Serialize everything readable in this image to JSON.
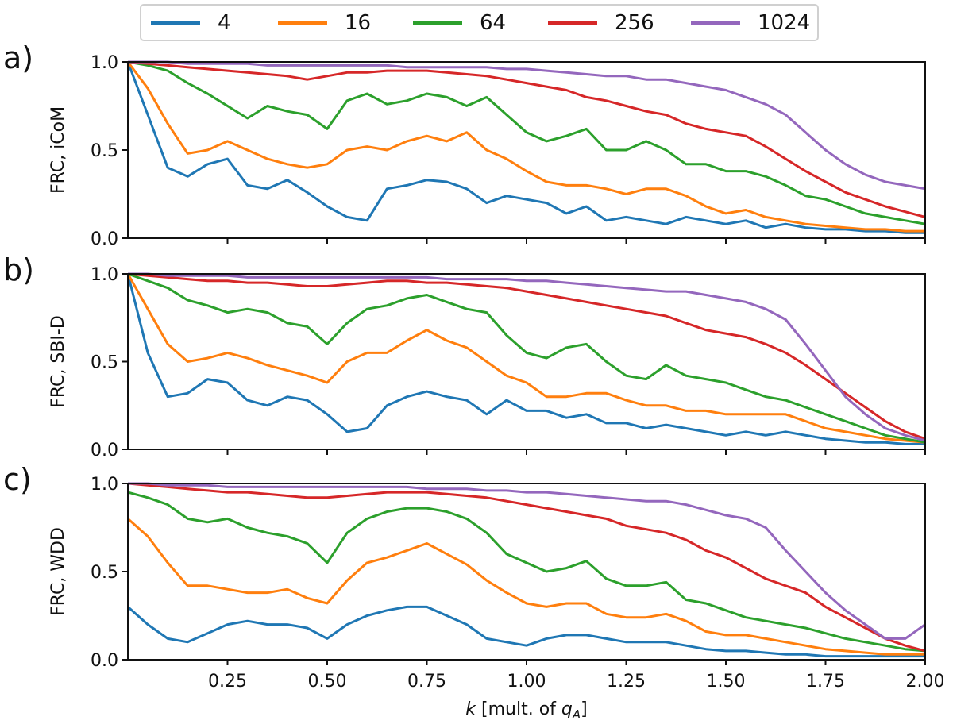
{
  "legend": {
    "items": [
      {
        "label": "4",
        "color": "#1f77b4"
      },
      {
        "label": "16",
        "color": "#ff7f0e"
      },
      {
        "label": "64",
        "color": "#2ca02c"
      },
      {
        "label": "256",
        "color": "#d62728"
      },
      {
        "label": "1024",
        "color": "#9467bd"
      }
    ]
  },
  "xaxis": {
    "label_main": "k",
    "label_rest": " [mult. of ",
    "label_q": "q",
    "label_sub": "A",
    "label_close": "]"
  },
  "chart_data": [
    {
      "type": "line",
      "panel_label": "a)",
      "ylabel": "FRC, iCoM",
      "xlim": [
        0.0,
        2.0
      ],
      "ylim": [
        0.0,
        1.0
      ],
      "xticks": [
        "0.25",
        "0.50",
        "0.75",
        "1.00",
        "1.25",
        "1.50",
        "1.75",
        "2.00"
      ],
      "yticks": [
        "0.0",
        "0.5",
        "1.0"
      ],
      "x": [
        0.0,
        0.05,
        0.1,
        0.15,
        0.2,
        0.25,
        0.3,
        0.35,
        0.4,
        0.45,
        0.5,
        0.55,
        0.6,
        0.65,
        0.7,
        0.75,
        0.8,
        0.85,
        0.9,
        0.95,
        1.0,
        1.05,
        1.1,
        1.15,
        1.2,
        1.25,
        1.3,
        1.35,
        1.4,
        1.45,
        1.5,
        1.55,
        1.6,
        1.65,
        1.7,
        1.75,
        1.8,
        1.85,
        1.9,
        1.95,
        2.0
      ],
      "series": [
        {
          "name": "4",
          "values": [
            1.0,
            0.7,
            0.4,
            0.35,
            0.42,
            0.45,
            0.3,
            0.28,
            0.33,
            0.26,
            0.18,
            0.12,
            0.1,
            0.28,
            0.3,
            0.33,
            0.32,
            0.28,
            0.2,
            0.24,
            0.22,
            0.2,
            0.14,
            0.18,
            0.1,
            0.12,
            0.1,
            0.08,
            0.12,
            0.1,
            0.08,
            0.1,
            0.06,
            0.08,
            0.06,
            0.05,
            0.05,
            0.04,
            0.04,
            0.03,
            0.03
          ]
        },
        {
          "name": "16",
          "values": [
            1.0,
            0.85,
            0.65,
            0.48,
            0.5,
            0.55,
            0.5,
            0.45,
            0.42,
            0.4,
            0.42,
            0.5,
            0.52,
            0.5,
            0.55,
            0.58,
            0.55,
            0.6,
            0.5,
            0.45,
            0.38,
            0.32,
            0.3,
            0.3,
            0.28,
            0.25,
            0.28,
            0.28,
            0.24,
            0.18,
            0.14,
            0.16,
            0.12,
            0.1,
            0.08,
            0.07,
            0.06,
            0.05,
            0.05,
            0.04,
            0.04
          ]
        },
        {
          "name": "64",
          "values": [
            1.0,
            0.98,
            0.95,
            0.88,
            0.82,
            0.75,
            0.68,
            0.75,
            0.72,
            0.7,
            0.62,
            0.78,
            0.82,
            0.76,
            0.78,
            0.82,
            0.8,
            0.75,
            0.8,
            0.7,
            0.6,
            0.55,
            0.58,
            0.62,
            0.5,
            0.5,
            0.55,
            0.5,
            0.42,
            0.42,
            0.38,
            0.38,
            0.35,
            0.3,
            0.24,
            0.22,
            0.18,
            0.14,
            0.12,
            0.1,
            0.08
          ]
        },
        {
          "name": "256",
          "values": [
            1.0,
            0.99,
            0.98,
            0.97,
            0.96,
            0.95,
            0.94,
            0.93,
            0.92,
            0.9,
            0.92,
            0.94,
            0.94,
            0.95,
            0.95,
            0.95,
            0.94,
            0.93,
            0.92,
            0.9,
            0.88,
            0.86,
            0.84,
            0.8,
            0.78,
            0.75,
            0.72,
            0.7,
            0.65,
            0.62,
            0.6,
            0.58,
            0.52,
            0.45,
            0.38,
            0.32,
            0.26,
            0.22,
            0.18,
            0.15,
            0.12
          ]
        },
        {
          "name": "1024",
          "values": [
            1.0,
            1.0,
            1.0,
            0.99,
            0.99,
            0.99,
            0.99,
            0.98,
            0.98,
            0.98,
            0.98,
            0.98,
            0.98,
            0.98,
            0.97,
            0.97,
            0.97,
            0.97,
            0.97,
            0.96,
            0.96,
            0.95,
            0.94,
            0.93,
            0.92,
            0.92,
            0.9,
            0.9,
            0.88,
            0.86,
            0.84,
            0.8,
            0.76,
            0.7,
            0.6,
            0.5,
            0.42,
            0.36,
            0.32,
            0.3,
            0.28
          ]
        }
      ]
    },
    {
      "type": "line",
      "panel_label": "b)",
      "ylabel": "FRC, SBI-D",
      "xlim": [
        0.0,
        2.0
      ],
      "ylim": [
        0.0,
        1.0
      ],
      "xticks": [],
      "yticks": [
        "0.0",
        "0.5",
        "1.0"
      ],
      "x": [
        0.0,
        0.05,
        0.1,
        0.15,
        0.2,
        0.25,
        0.3,
        0.35,
        0.4,
        0.45,
        0.5,
        0.55,
        0.6,
        0.65,
        0.7,
        0.75,
        0.8,
        0.85,
        0.9,
        0.95,
        1.0,
        1.05,
        1.1,
        1.15,
        1.2,
        1.25,
        1.3,
        1.35,
        1.4,
        1.45,
        1.5,
        1.55,
        1.6,
        1.65,
        1.7,
        1.75,
        1.8,
        1.85,
        1.9,
        1.95,
        2.0
      ],
      "series": [
        {
          "name": "4",
          "values": [
            1.0,
            0.55,
            0.3,
            0.32,
            0.4,
            0.38,
            0.28,
            0.25,
            0.3,
            0.28,
            0.2,
            0.1,
            0.12,
            0.25,
            0.3,
            0.33,
            0.3,
            0.28,
            0.2,
            0.28,
            0.22,
            0.22,
            0.18,
            0.2,
            0.15,
            0.15,
            0.12,
            0.14,
            0.12,
            0.1,
            0.08,
            0.1,
            0.08,
            0.1,
            0.08,
            0.06,
            0.05,
            0.04,
            0.04,
            0.03,
            0.03
          ]
        },
        {
          "name": "16",
          "values": [
            1.0,
            0.8,
            0.6,
            0.5,
            0.52,
            0.55,
            0.52,
            0.48,
            0.45,
            0.42,
            0.38,
            0.5,
            0.55,
            0.55,
            0.62,
            0.68,
            0.62,
            0.58,
            0.5,
            0.42,
            0.38,
            0.3,
            0.3,
            0.32,
            0.32,
            0.28,
            0.25,
            0.25,
            0.22,
            0.22,
            0.2,
            0.2,
            0.2,
            0.2,
            0.16,
            0.12,
            0.1,
            0.08,
            0.06,
            0.05,
            0.04
          ]
        },
        {
          "name": "64",
          "values": [
            1.0,
            0.96,
            0.92,
            0.85,
            0.82,
            0.78,
            0.8,
            0.78,
            0.72,
            0.7,
            0.6,
            0.72,
            0.8,
            0.82,
            0.86,
            0.88,
            0.84,
            0.8,
            0.78,
            0.65,
            0.55,
            0.52,
            0.58,
            0.6,
            0.5,
            0.42,
            0.4,
            0.48,
            0.42,
            0.4,
            0.38,
            0.34,
            0.3,
            0.28,
            0.24,
            0.2,
            0.16,
            0.12,
            0.08,
            0.06,
            0.04
          ]
        },
        {
          "name": "256",
          "values": [
            1.0,
            0.99,
            0.98,
            0.97,
            0.96,
            0.96,
            0.95,
            0.95,
            0.94,
            0.93,
            0.93,
            0.94,
            0.95,
            0.96,
            0.96,
            0.95,
            0.95,
            0.94,
            0.93,
            0.92,
            0.9,
            0.88,
            0.86,
            0.84,
            0.82,
            0.8,
            0.78,
            0.76,
            0.72,
            0.68,
            0.66,
            0.64,
            0.6,
            0.55,
            0.48,
            0.4,
            0.32,
            0.24,
            0.16,
            0.1,
            0.06
          ]
        },
        {
          "name": "1024",
          "values": [
            1.0,
            1.0,
            0.99,
            0.99,
            0.99,
            0.99,
            0.98,
            0.98,
            0.98,
            0.98,
            0.98,
            0.98,
            0.98,
            0.98,
            0.98,
            0.98,
            0.97,
            0.97,
            0.97,
            0.97,
            0.96,
            0.96,
            0.95,
            0.94,
            0.93,
            0.92,
            0.91,
            0.9,
            0.9,
            0.88,
            0.86,
            0.84,
            0.8,
            0.74,
            0.6,
            0.45,
            0.3,
            0.2,
            0.12,
            0.08,
            0.05
          ]
        }
      ]
    },
    {
      "type": "line",
      "panel_label": "c)",
      "ylabel": "FRC, WDD",
      "xlim": [
        0.0,
        2.0
      ],
      "ylim": [
        0.0,
        1.0
      ],
      "xticks": [],
      "yticks": [
        "0.0",
        "0.5",
        "1.0"
      ],
      "x": [
        0.0,
        0.05,
        0.1,
        0.15,
        0.2,
        0.25,
        0.3,
        0.35,
        0.4,
        0.45,
        0.5,
        0.55,
        0.6,
        0.65,
        0.7,
        0.75,
        0.8,
        0.85,
        0.9,
        0.95,
        1.0,
        1.05,
        1.1,
        1.15,
        1.2,
        1.25,
        1.3,
        1.35,
        1.4,
        1.45,
        1.5,
        1.55,
        1.6,
        1.65,
        1.7,
        1.75,
        1.8,
        1.85,
        1.9,
        1.95,
        2.0
      ],
      "series": [
        {
          "name": "4",
          "values": [
            0.3,
            0.2,
            0.12,
            0.1,
            0.15,
            0.2,
            0.22,
            0.2,
            0.2,
            0.18,
            0.12,
            0.2,
            0.25,
            0.28,
            0.3,
            0.3,
            0.25,
            0.2,
            0.12,
            0.1,
            0.08,
            0.12,
            0.14,
            0.14,
            0.12,
            0.1,
            0.1,
            0.1,
            0.08,
            0.06,
            0.05,
            0.05,
            0.04,
            0.03,
            0.03,
            0.02,
            0.02,
            0.02,
            0.02,
            0.02,
            0.02
          ]
        },
        {
          "name": "16",
          "values": [
            0.8,
            0.7,
            0.55,
            0.42,
            0.42,
            0.4,
            0.38,
            0.38,
            0.4,
            0.35,
            0.32,
            0.45,
            0.55,
            0.58,
            0.62,
            0.66,
            0.6,
            0.54,
            0.45,
            0.38,
            0.32,
            0.3,
            0.32,
            0.32,
            0.26,
            0.24,
            0.24,
            0.26,
            0.22,
            0.16,
            0.14,
            0.14,
            0.12,
            0.1,
            0.08,
            0.06,
            0.05,
            0.04,
            0.03,
            0.03,
            0.03
          ]
        },
        {
          "name": "64",
          "values": [
            0.95,
            0.92,
            0.88,
            0.8,
            0.78,
            0.8,
            0.75,
            0.72,
            0.7,
            0.66,
            0.55,
            0.72,
            0.8,
            0.84,
            0.86,
            0.86,
            0.84,
            0.8,
            0.72,
            0.6,
            0.55,
            0.5,
            0.52,
            0.56,
            0.46,
            0.42,
            0.42,
            0.44,
            0.34,
            0.32,
            0.28,
            0.24,
            0.22,
            0.2,
            0.18,
            0.15,
            0.12,
            0.1,
            0.08,
            0.06,
            0.05
          ]
        },
        {
          "name": "256",
          "values": [
            1.0,
            0.99,
            0.98,
            0.97,
            0.96,
            0.95,
            0.95,
            0.94,
            0.93,
            0.92,
            0.92,
            0.93,
            0.94,
            0.95,
            0.95,
            0.95,
            0.94,
            0.93,
            0.92,
            0.9,
            0.88,
            0.86,
            0.84,
            0.82,
            0.8,
            0.76,
            0.74,
            0.72,
            0.68,
            0.62,
            0.58,
            0.52,
            0.46,
            0.42,
            0.38,
            0.3,
            0.24,
            0.18,
            0.12,
            0.08,
            0.05
          ]
        },
        {
          "name": "1024",
          "values": [
            1.0,
            1.0,
            0.99,
            0.99,
            0.99,
            0.98,
            0.98,
            0.98,
            0.98,
            0.98,
            0.98,
            0.98,
            0.98,
            0.98,
            0.98,
            0.97,
            0.97,
            0.97,
            0.96,
            0.96,
            0.95,
            0.95,
            0.94,
            0.93,
            0.92,
            0.91,
            0.9,
            0.9,
            0.88,
            0.85,
            0.82,
            0.8,
            0.75,
            0.62,
            0.5,
            0.38,
            0.28,
            0.2,
            0.12,
            0.12,
            0.2
          ]
        }
      ]
    }
  ]
}
